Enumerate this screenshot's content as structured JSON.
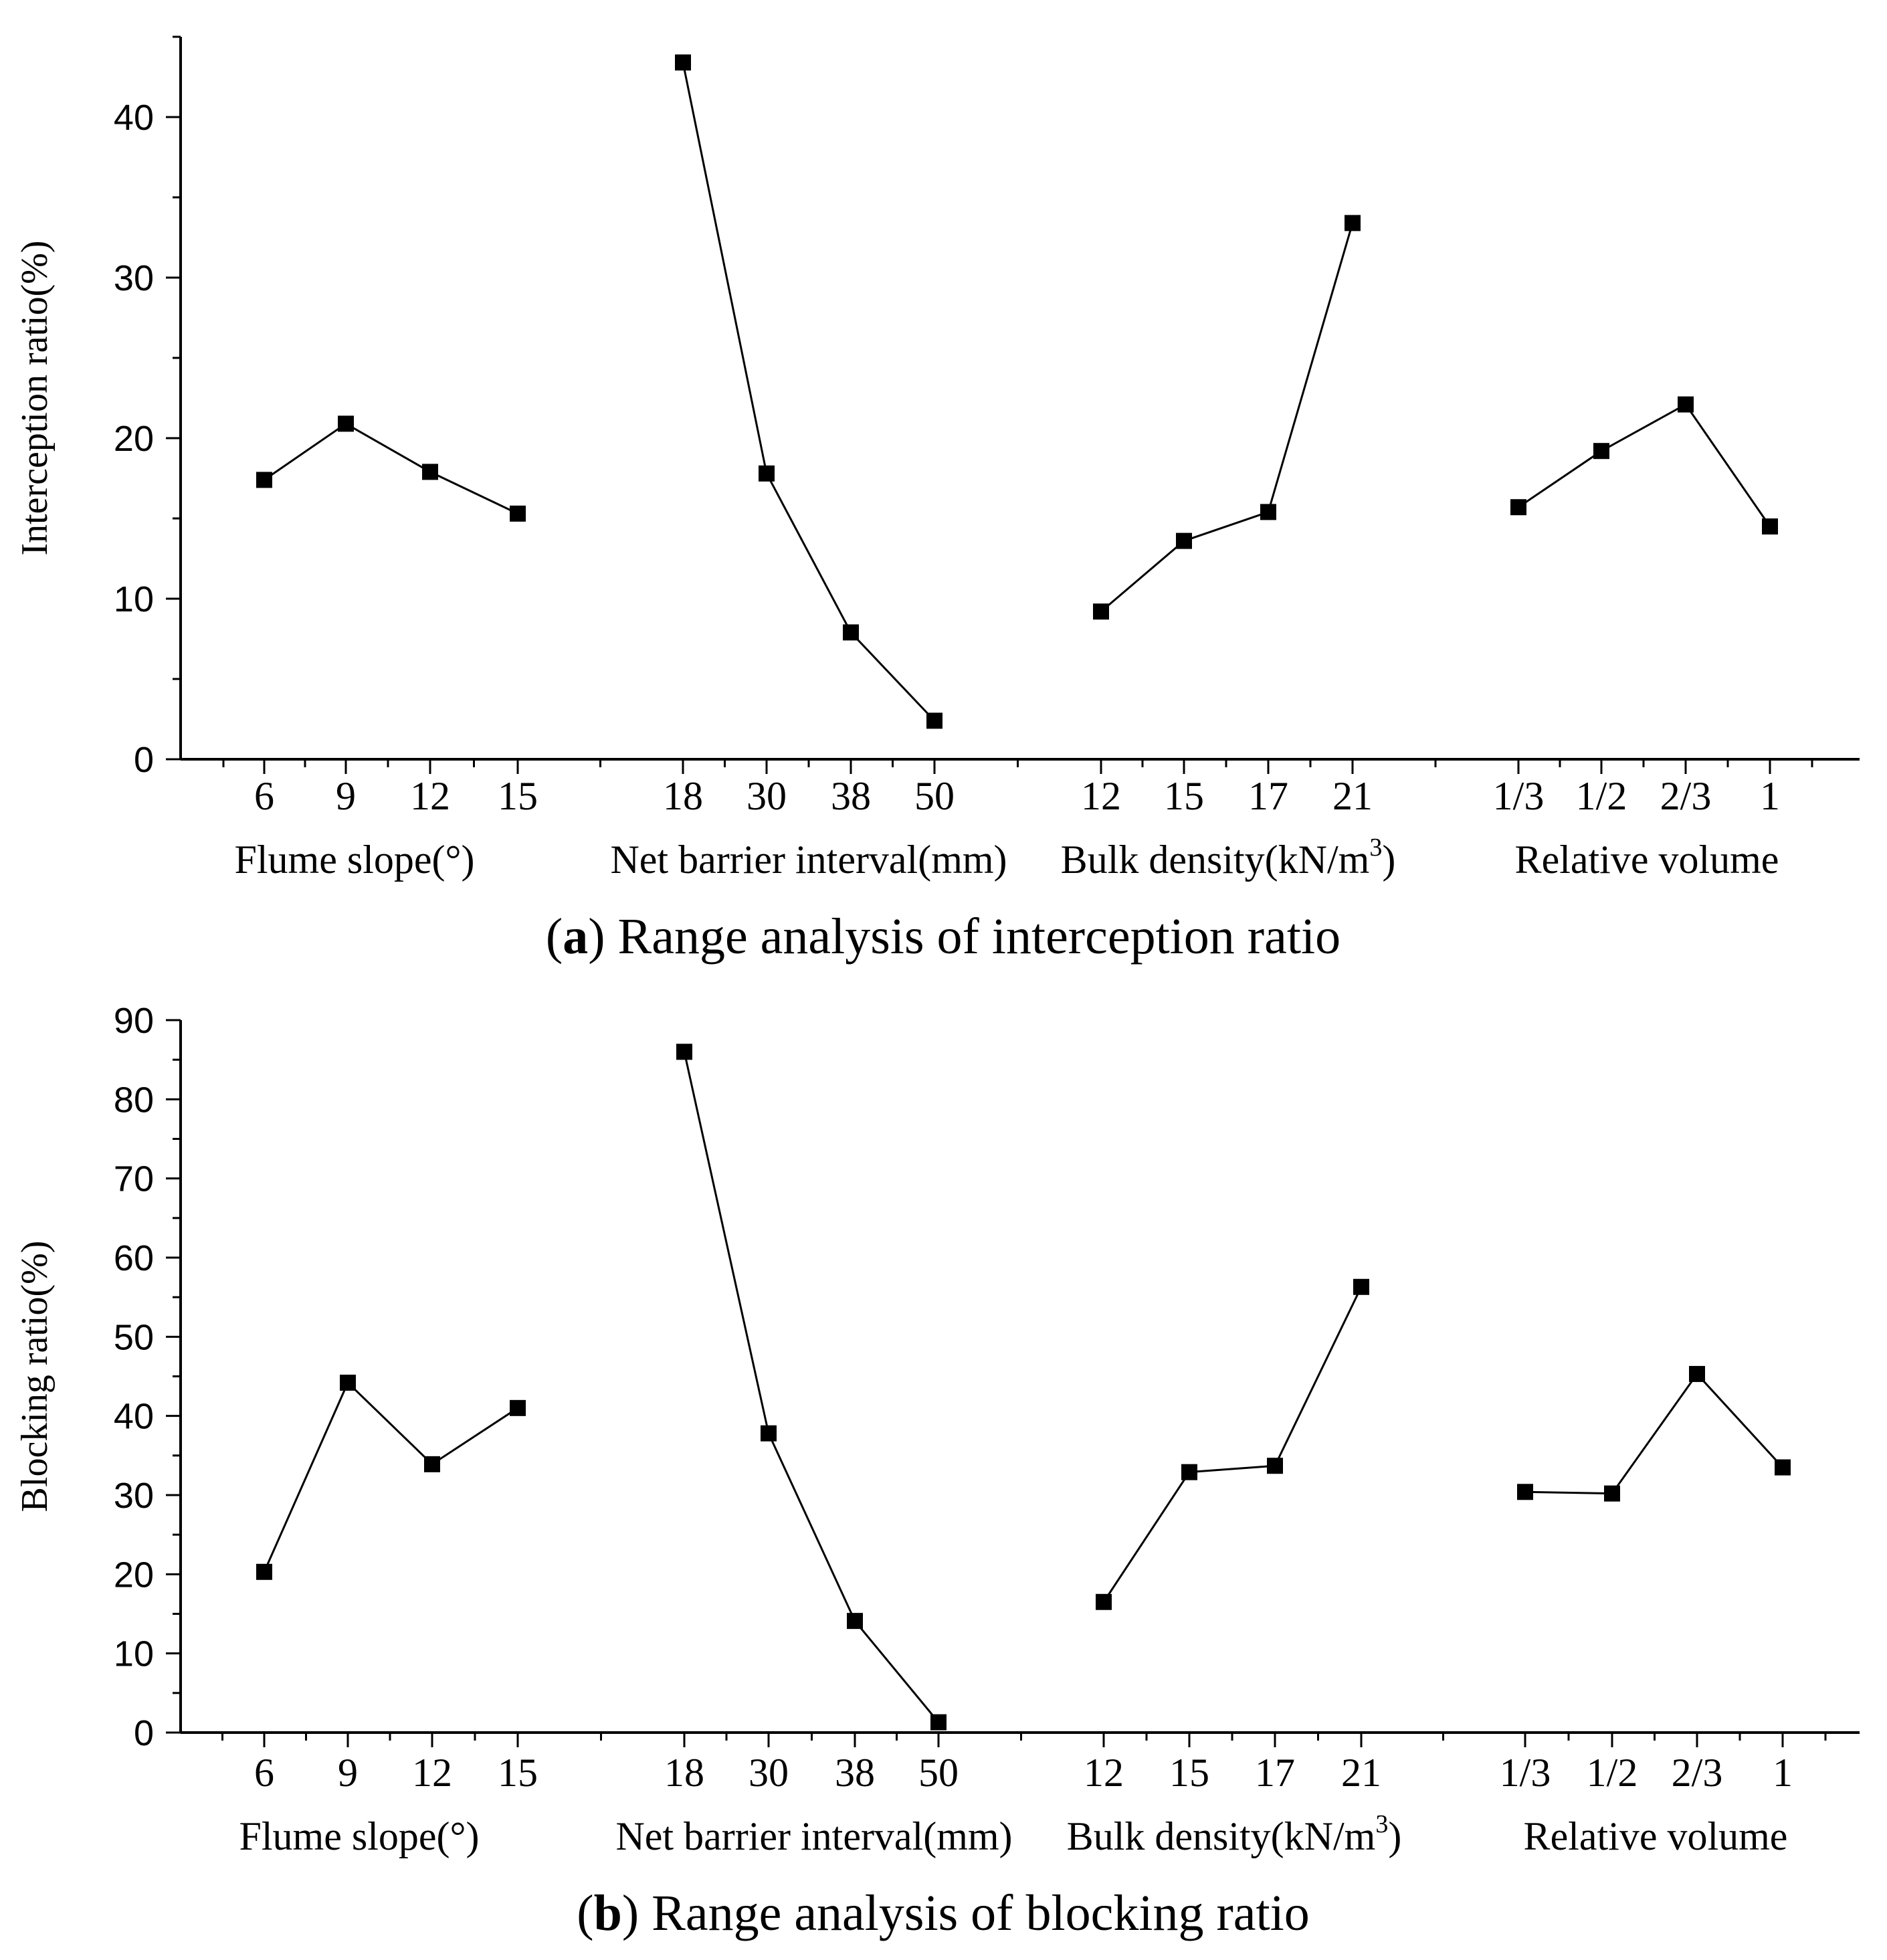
{
  "chart_data": [
    {
      "type": "line",
      "ylabel": "Interception ratio(%)",
      "ylim": [
        0,
        45
      ],
      "yticks": [
        0,
        10,
        20,
        30,
        40
      ],
      "yminor_step": 5,
      "caption": {
        "letter": "a",
        "text": ") Range analysis of interception ratio",
        "open": "("
      },
      "groups": [
        {
          "label": "Flume slope(°)",
          "categories": [
            "6",
            "9",
            "12",
            "15"
          ],
          "values": [
            17.4,
            20.9,
            17.9,
            15.3
          ]
        },
        {
          "label": "Net barrier interval(mm)",
          "categories": [
            "18",
            "30",
            "38",
            "50"
          ],
          "values": [
            43.4,
            17.8,
            7.9,
            2.4
          ]
        },
        {
          "label": "Bulk density(kN/m",
          "label_sup": "3",
          "label_end": ")",
          "categories": [
            "12",
            "15",
            "17",
            "21"
          ],
          "values": [
            9.2,
            13.6,
            15.4,
            33.4
          ]
        },
        {
          "label": "Relative volume",
          "categories": [
            "1/3",
            "1/2",
            "2/3",
            "1"
          ],
          "values": [
            15.7,
            19.2,
            22.1,
            14.5
          ]
        }
      ]
    },
    {
      "type": "line",
      "ylabel": "Blocking ratio(%)",
      "ylim": [
        0,
        90
      ],
      "yticks": [
        0,
        10,
        20,
        30,
        40,
        50,
        60,
        70,
        80,
        90
      ],
      "yminor_step": 5,
      "caption": {
        "letter": "b",
        "text": ") Range analysis of blocking ratio",
        "open": "("
      },
      "groups": [
        {
          "label": "Flume slope(°)",
          "categories": [
            "6",
            "9",
            "12",
            "15"
          ],
          "values": [
            20.3,
            44.2,
            33.9,
            41.0
          ]
        },
        {
          "label": "Net barrier interval(mm)",
          "categories": [
            "18",
            "30",
            "38",
            "50"
          ],
          "values": [
            86.0,
            37.8,
            14.1,
            1.3
          ]
        },
        {
          "label": "Bulk density(kN/m",
          "label_sup": "3",
          "label_end": ")",
          "categories": [
            "12",
            "15",
            "17",
            "21"
          ],
          "values": [
            16.5,
            32.9,
            33.7,
            56.3
          ]
        },
        {
          "label": "Relative volume",
          "categories": [
            "1/3",
            "1/2",
            "2/3",
            "1"
          ],
          "values": [
            30.4,
            30.2,
            45.3,
            33.5
          ]
        }
      ]
    }
  ]
}
